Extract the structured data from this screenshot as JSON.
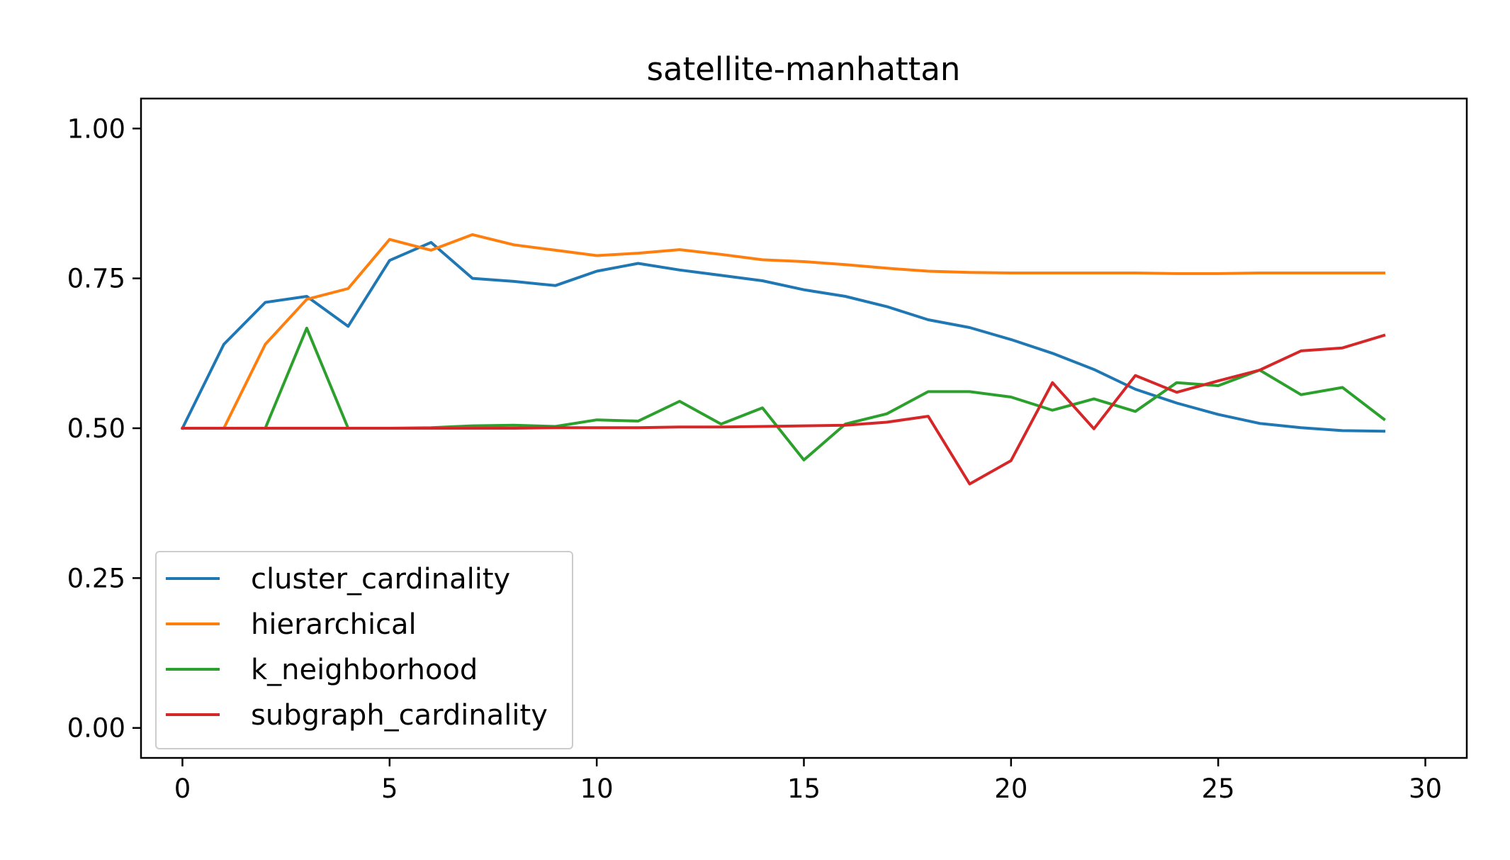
{
  "chart_data": {
    "type": "line",
    "title": "satellite-manhattan",
    "xlabel": "",
    "ylabel": "",
    "xlim": [
      -1,
      31
    ],
    "ylim": [
      -0.05,
      1.05
    ],
    "x_ticks": [
      0,
      5,
      10,
      15,
      20,
      25,
      30
    ],
    "x_tick_labels": [
      "0",
      "5",
      "10",
      "15",
      "20",
      "25",
      "30"
    ],
    "y_ticks": [
      0.0,
      0.25,
      0.5,
      0.75,
      1.0
    ],
    "y_tick_labels": [
      "0.00",
      "0.25",
      "0.50",
      "0.75",
      "1.00"
    ],
    "grid": false,
    "legend_position": "lower-left",
    "x": [
      0,
      1,
      2,
      3,
      4,
      5,
      6,
      7,
      8,
      9,
      10,
      11,
      12,
      13,
      14,
      15,
      16,
      17,
      18,
      19,
      20,
      21,
      22,
      23,
      24,
      25,
      26,
      27,
      28,
      29
    ],
    "series": [
      {
        "name": "cluster_cardinality",
        "color": "#1f77b4",
        "values": [
          0.5,
          0.64,
          0.71,
          0.72,
          0.67,
          0.78,
          0.81,
          0.75,
          0.745,
          0.738,
          0.762,
          0.775,
          0.764,
          0.755,
          0.746,
          0.731,
          0.72,
          0.703,
          0.681,
          0.668,
          0.648,
          0.625,
          0.598,
          0.565,
          0.542,
          0.523,
          0.508,
          0.501,
          0.496,
          0.495
        ]
      },
      {
        "name": "hierarchical",
        "color": "#ff7f0e",
        "values": [
          0.5,
          0.5,
          0.64,
          0.715,
          0.733,
          0.815,
          0.797,
          0.823,
          0.806,
          0.797,
          0.788,
          0.792,
          0.798,
          0.79,
          0.781,
          0.778,
          0.773,
          0.767,
          0.762,
          0.76,
          0.759,
          0.759,
          0.759,
          0.759,
          0.758,
          0.758,
          0.759,
          0.759,
          0.759,
          0.759
        ]
      },
      {
        "name": "k_neighborhood",
        "color": "#2ca02c",
        "values": [
          0.5,
          0.5,
          0.5,
          0.667,
          0.5,
          0.5,
          0.501,
          0.504,
          0.505,
          0.503,
          0.514,
          0.512,
          0.545,
          0.507,
          0.534,
          0.447,
          0.507,
          0.524,
          0.561,
          0.561,
          0.552,
          0.53,
          0.549,
          0.528,
          0.576,
          0.571,
          0.597,
          0.556,
          0.568,
          0.515
        ]
      },
      {
        "name": "subgraph_cardinality",
        "color": "#d62728",
        "values": [
          0.5,
          0.5,
          0.5,
          0.5,
          0.5,
          0.5,
          0.5,
          0.5,
          0.5,
          0.501,
          0.501,
          0.501,
          0.502,
          0.502,
          0.503,
          0.504,
          0.505,
          0.51,
          0.52,
          0.407,
          0.446,
          0.576,
          0.499,
          0.588,
          0.56,
          0.579,
          0.597,
          0.629,
          0.634,
          0.655
        ]
      }
    ]
  }
}
